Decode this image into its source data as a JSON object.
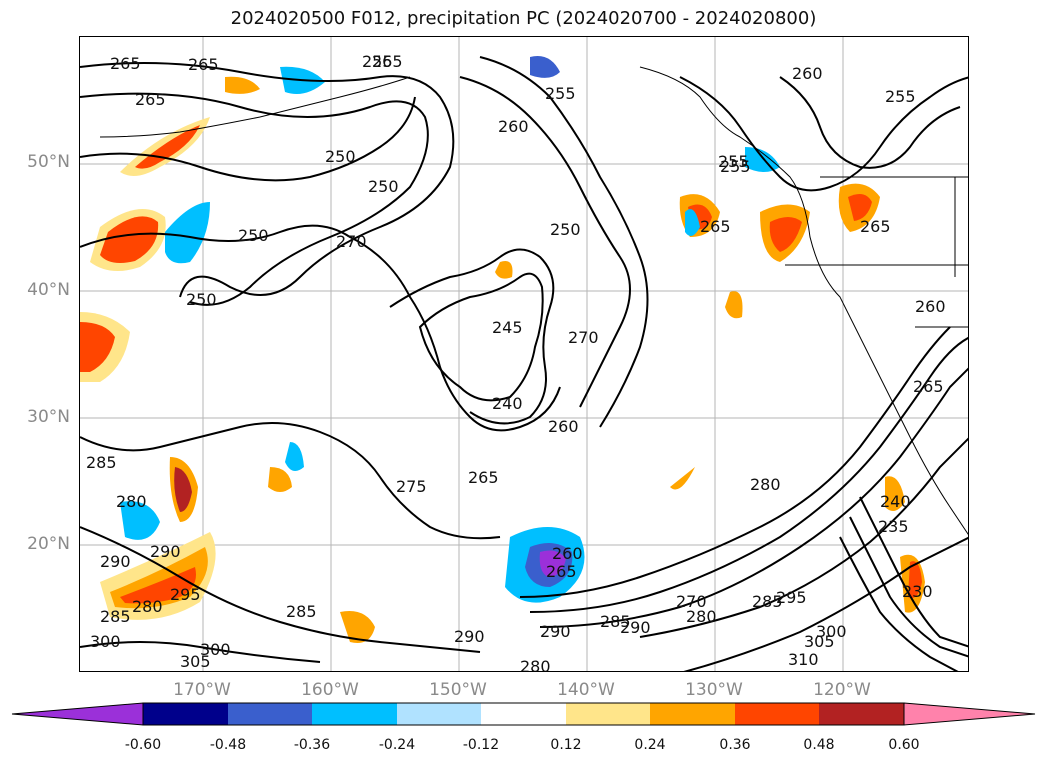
{
  "title": "2024020500 F012, precipitation PC (2024020700 - 2024020800)",
  "map": {
    "latitude_labels": [
      "50°N",
      "40°N",
      "30°N",
      "20°N"
    ],
    "longitude_labels": [
      "170°W",
      "160°W",
      "150°W",
      "140°W",
      "130°W",
      "120°W"
    ],
    "gridlines": true,
    "contour_color": "#000000",
    "contour_labels": [
      "265",
      "265",
      "265",
      "255",
      "265",
      "260",
      "255",
      "255",
      "250",
      "260",
      "250",
      "255",
      "265",
      "250",
      "270",
      "250",
      "250",
      "245",
      "270",
      "240",
      "260",
      "265",
      "275",
      "285",
      "280",
      "290",
      "290",
      "300",
      "285",
      "295",
      "280",
      "300",
      "305",
      "285",
      "290",
      "290",
      "285",
      "290",
      "280",
      "270",
      "280",
      "285",
      "295",
      "300",
      "305",
      "310",
      "260",
      "265",
      "265",
      "255",
      "260",
      "280",
      "265",
      "240",
      "235",
      "230"
    ]
  },
  "colorbar": {
    "ticks": [
      "-0.60",
      "-0.48",
      "-0.36",
      "-0.24",
      "-0.12",
      "0.12",
      "0.24",
      "0.36",
      "0.48",
      "0.60"
    ],
    "colors": [
      "#9b30d9",
      "#00008b",
      "#3a5fcd",
      "#00bfff",
      "#b0e2ff",
      "#ffffff",
      "#ffe58a",
      "#ffa500",
      "#ff4500",
      "#b22222",
      "#ff82ab"
    ],
    "extend": "both"
  }
}
